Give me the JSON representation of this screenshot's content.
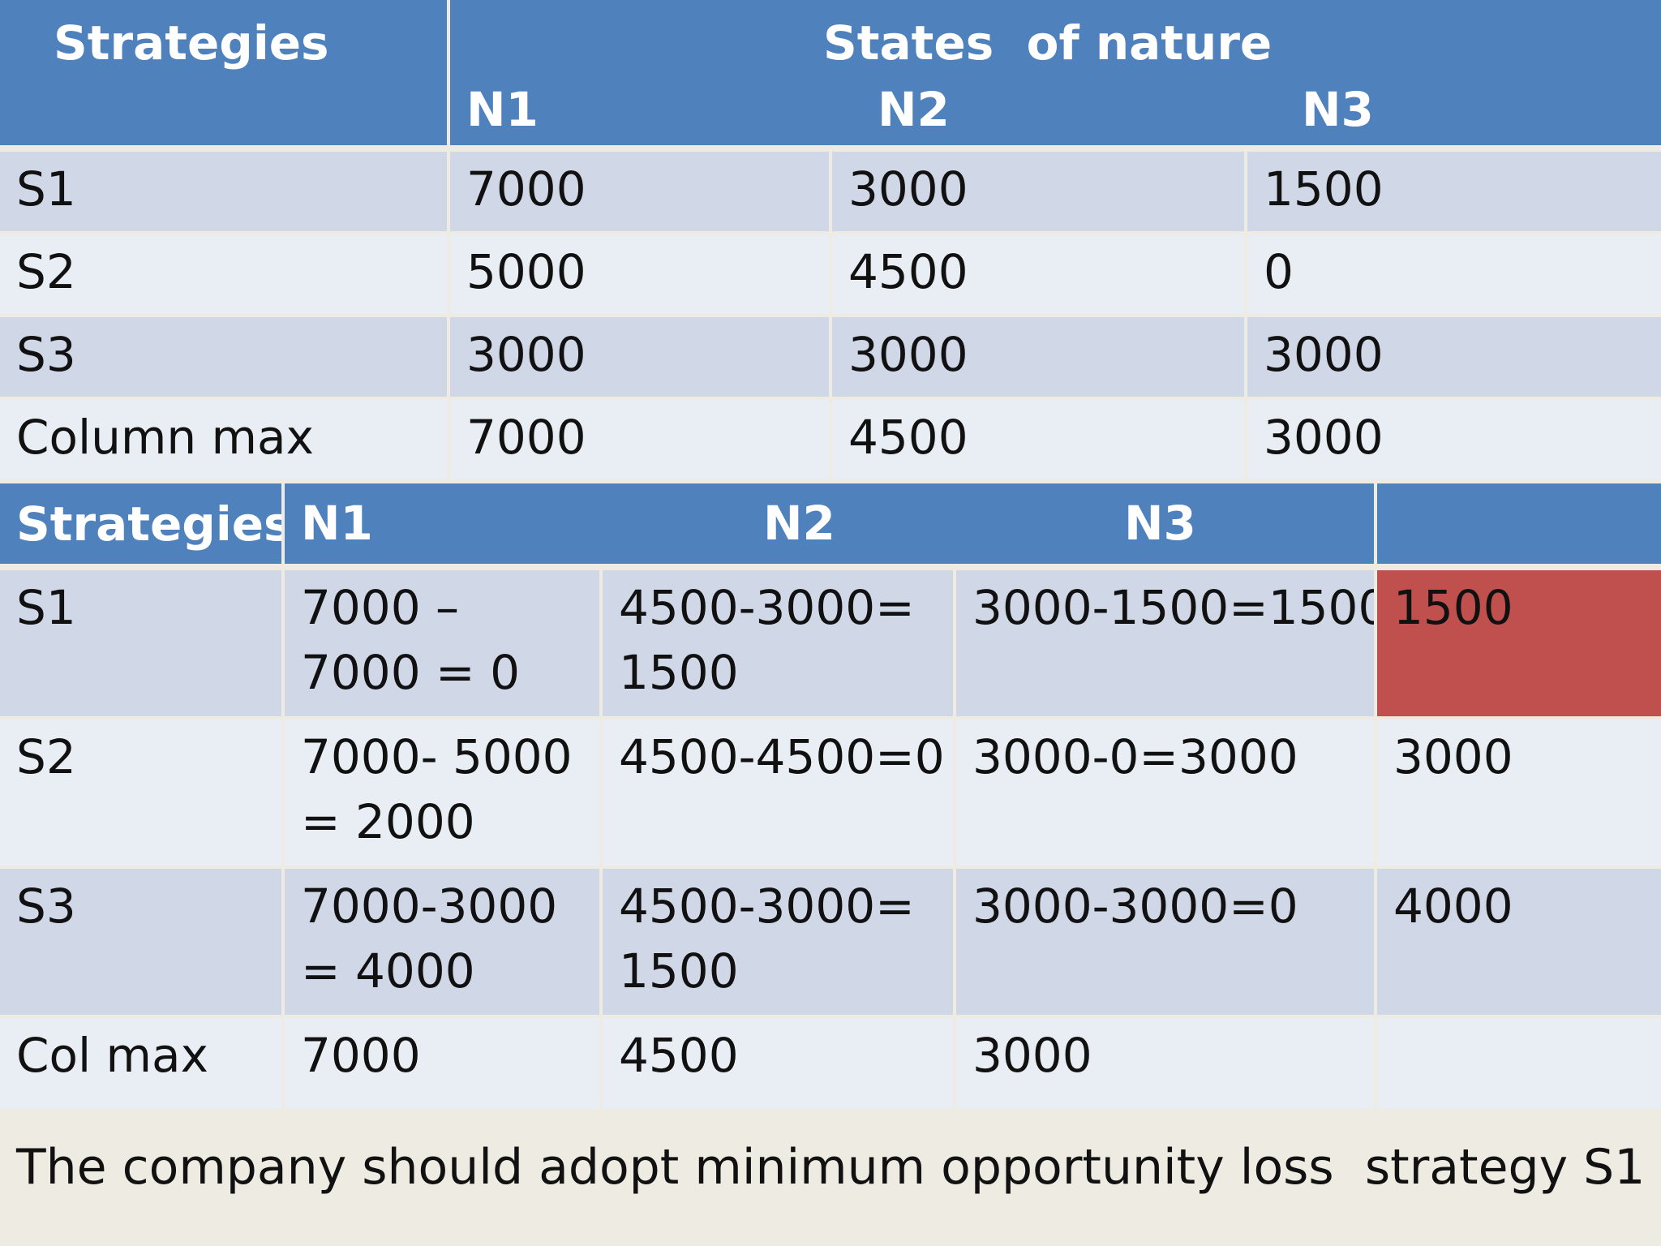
{
  "table1": {
    "header": {
      "strategies": "Strategies",
      "group": "States  of nature",
      "cols": [
        "N1",
        "N2",
        "N3"
      ]
    },
    "rows": [
      {
        "label": "S1",
        "values": [
          "7000",
          "3000",
          "1500"
        ]
      },
      {
        "label": "S2",
        "values": [
          "5000",
          "4500",
          "0"
        ]
      },
      {
        "label": "S3",
        "values": [
          "3000",
          "3000",
          "3000"
        ]
      },
      {
        "label": "Column max",
        "values": [
          "7000",
          "4500",
          "3000"
        ]
      }
    ]
  },
  "table2": {
    "header": {
      "strategies": "Strategies",
      "cols": [
        "N1",
        "N2",
        "N3",
        ""
      ]
    },
    "rows": [
      {
        "label": "S1",
        "values": [
          "7000 – 7000 = 0",
          "4500-3000= 1500",
          "3000-1500=1500",
          "1500"
        ]
      },
      {
        "label": "S2",
        "values": [
          "7000- 5000 = 2000",
          "4500-4500=0",
          "3000-0=3000",
          "3000"
        ]
      },
      {
        "label": "S3",
        "values": [
          "7000-3000 = 4000",
          "4500-3000= 1500",
          "3000-3000=0",
          "4000"
        ]
      },
      {
        "label": "Col max",
        "values": [
          "7000",
          "4500",
          "3000",
          ""
        ]
      }
    ],
    "highlight_color": "#c0504d"
  },
  "conclusion": "The company should adopt minimum opportunity loss  strategy S1",
  "colors": {
    "header": "#4f81bd",
    "row_dark": "#d0d8e8",
    "row_light": "#e9edf4",
    "footer_bg": "#eeebe2"
  }
}
